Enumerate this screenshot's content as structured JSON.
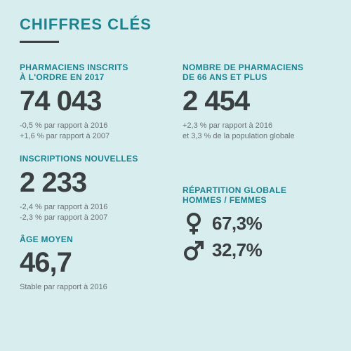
{
  "colors": {
    "background": "#d8edee",
    "teal": "#1b8390",
    "dark": "#3a3f42",
    "muted": "#6a6f72"
  },
  "fonts": {
    "title_size": 22,
    "label_size": 12,
    "big_size": 40,
    "note_size": 11,
    "gender_val_size": 26
  },
  "title": "CHIFFRES CLÉS",
  "blocks": {
    "inscrits": {
      "label": "PHARMACIENS INSCRITS\nÀ L'ORDRE EN 2017",
      "value": "74 043",
      "note1": "-0,5 % par rapport à 2016",
      "note2": "+1,6 % par rapport à 2007"
    },
    "age66": {
      "label": "NOMBRE DE PHARMACIENS\nDE 66 ANS ET PLUS",
      "value": "2 454",
      "note1": "+2,3 % par rapport à 2016",
      "note2": "et 3,3 % de la population globale"
    },
    "nouvelles": {
      "label": "INSCRIPTIONS NOUVELLES",
      "value": "2 233",
      "note1": "-2,4 % par rapport à 2016",
      "note2": "-2,3 % par rapport à 2007"
    },
    "age_moyen": {
      "label": "ÂGE MOYEN",
      "value": "46,7",
      "note1": "Stable par rapport à 2016"
    },
    "repartition": {
      "label": "RÉPARTITION GLOBALE\nHOMMES / FEMMES",
      "female": "67,3%",
      "male": "32,7%"
    }
  }
}
